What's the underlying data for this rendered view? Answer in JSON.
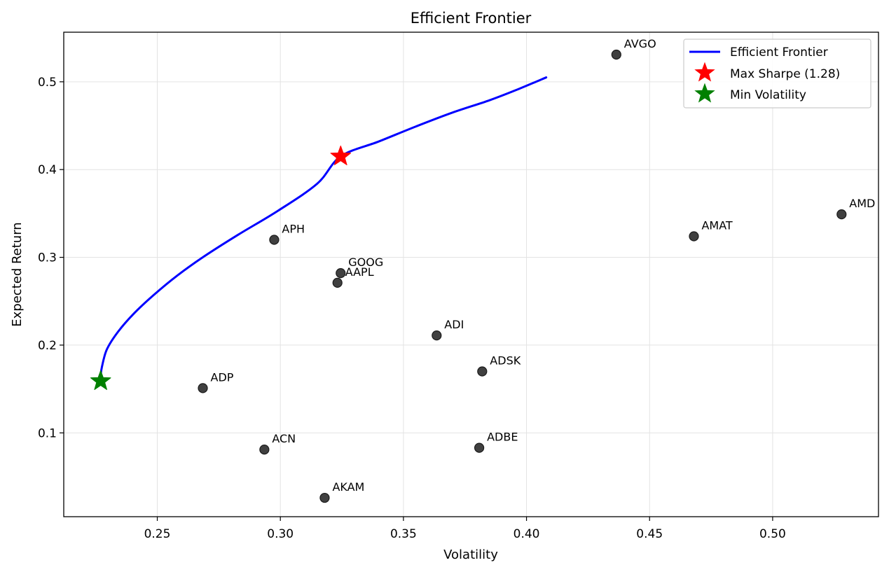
{
  "chart_data": {
    "type": "scatter",
    "title": "Efficient Frontier",
    "xlabel": "Volatility",
    "ylabel": "Expected Return",
    "xlim": [
      0.212,
      0.543
    ],
    "ylim": [
      0.0045,
      0.5565
    ],
    "xticks": [
      0.25,
      0.3,
      0.35,
      0.4,
      0.45,
      0.5
    ],
    "xtick_labels": [
      "0.25",
      "0.30",
      "0.35",
      "0.40",
      "0.45",
      "0.50"
    ],
    "yticks": [
      0.1,
      0.2,
      0.3,
      0.4,
      0.5
    ],
    "ytick_labels": [
      "0.1",
      "0.2",
      "0.3",
      "0.4",
      "0.5"
    ],
    "grid": true,
    "legend_position": "top-right",
    "frontier": {
      "name": "Efficient Frontier",
      "color": "#0000ff",
      "x": [
        0.227,
        0.2275,
        0.2295,
        0.234,
        0.2405,
        0.2485,
        0.258,
        0.269,
        0.283,
        0.299,
        0.315,
        0.3245,
        0.34,
        0.355,
        0.37,
        0.385,
        0.397,
        0.408
      ],
      "y": [
        0.165,
        0.175,
        0.195,
        0.215,
        0.236,
        0.257,
        0.279,
        0.301,
        0.326,
        0.353,
        0.384,
        0.415,
        0.432,
        0.449,
        0.465,
        0.479,
        0.492,
        0.505
      ]
    },
    "max_sharpe": {
      "name": "Max Sharpe (1.28)",
      "x": 0.3245,
      "y": 0.415,
      "color": "#ff0000"
    },
    "min_volatility": {
      "name": "Min Volatility",
      "x": 0.227,
      "y": 0.159,
      "color": "#008000"
    },
    "assets": [
      {
        "label": "AVGO",
        "x": 0.4365,
        "y": 0.531
      },
      {
        "label": "AMD",
        "x": 0.528,
        "y": 0.349
      },
      {
        "label": "AMAT",
        "x": 0.468,
        "y": 0.324
      },
      {
        "label": "APH",
        "x": 0.2975,
        "y": 0.32
      },
      {
        "label": "GOOG",
        "x": 0.3245,
        "y": 0.282
      },
      {
        "label": "AAPL",
        "x": 0.3232,
        "y": 0.271
      },
      {
        "label": "ADI",
        "x": 0.3635,
        "y": 0.211
      },
      {
        "label": "ADSK",
        "x": 0.382,
        "y": 0.17
      },
      {
        "label": "ADP",
        "x": 0.2685,
        "y": 0.151
      },
      {
        "label": "ACN",
        "x": 0.2935,
        "y": 0.081
      },
      {
        "label": "ADBE",
        "x": 0.3808,
        "y": 0.083
      },
      {
        "label": "AKAM",
        "x": 0.318,
        "y": 0.026
      }
    ],
    "asset_color": "#404040"
  }
}
